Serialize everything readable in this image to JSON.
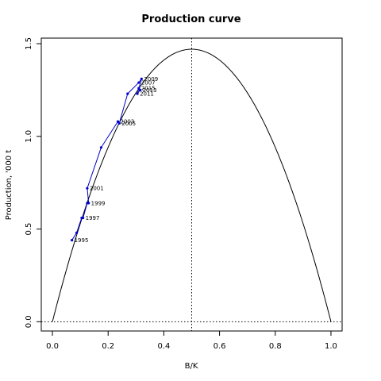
{
  "chart_data": {
    "type": "line",
    "title": "Production curve",
    "xlabel": "B/K",
    "ylabel": "Production, '000 t",
    "xlim": [
      -0.04,
      1.04
    ],
    "ylim": [
      -0.05,
      1.53
    ],
    "x_ticks": [
      0.0,
      0.2,
      0.4,
      0.6,
      0.8,
      1.0
    ],
    "x_tick_labels": [
      "0.0",
      "0.2",
      "0.4",
      "0.6",
      "0.8",
      "1.0"
    ],
    "y_ticks": [
      0.0,
      0.5,
      1.0,
      1.5
    ],
    "y_tick_labels": [
      "0.0",
      "0.5",
      "1.0",
      "1.5"
    ],
    "colors": {
      "curve": "#000000",
      "series": "#0000cc",
      "reference": "#000000"
    },
    "curve": {
      "name": "production curve",
      "peak_x": 0.5,
      "peak_y": 1.47,
      "x_range": [
        0.0,
        1.0
      ]
    },
    "reference_lines": {
      "vertical_x": 0.5,
      "horizontal_y": 0.0,
      "style": "dotted"
    },
    "series": [
      {
        "points": [
          {
            "x": 0.07,
            "y": 0.44,
            "label": "1995"
          },
          {
            "x": 0.087,
            "y": 0.48,
            "label": ""
          },
          {
            "x": 0.105,
            "y": 0.56,
            "label": ""
          },
          {
            "x": 0.11,
            "y": 0.56,
            "label": "1997"
          },
          {
            "x": 0.125,
            "y": 0.64,
            "label": ""
          },
          {
            "x": 0.13,
            "y": 0.64,
            "label": "1999"
          },
          {
            "x": 0.125,
            "y": 0.72,
            "label": "2001"
          },
          {
            "x": 0.175,
            "y": 0.94,
            "label": ""
          },
          {
            "x": 0.235,
            "y": 1.08,
            "label": "2003"
          },
          {
            "x": 0.24,
            "y": 1.07,
            "label": "2005"
          },
          {
            "x": 0.27,
            "y": 1.23,
            "label": ""
          },
          {
            "x": 0.31,
            "y": 1.29,
            "label": "2007"
          },
          {
            "x": 0.32,
            "y": 1.31,
            "label": "2009"
          },
          {
            "x": 0.305,
            "y": 1.23,
            "label": "2011"
          },
          {
            "x": 0.315,
            "y": 1.25,
            "label": "2013"
          },
          {
            "x": 0.31,
            "y": 1.26,
            "label": "2015"
          }
        ]
      }
    ]
  }
}
